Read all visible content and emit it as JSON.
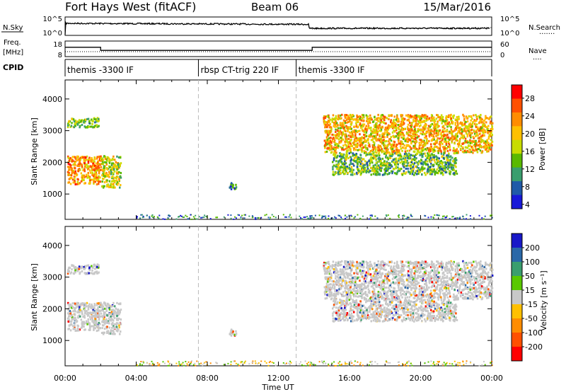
{
  "header": {
    "station": "Fort Hays West (fitACF)",
    "beam": "Beam 06",
    "date": "15/Mar/2016"
  },
  "noise_panel": {
    "left_label": "N.Sky",
    "left_ticks": [
      "10^5",
      "10^0"
    ],
    "right_ticks": [
      "10^5",
      "10^0"
    ],
    "right_label": "N.Search",
    "right_legend": "......."
  },
  "freq_panel": {
    "left_label_top": "Freq.",
    "left_label_bottom": "[MHz]",
    "left_ticks": [
      "18",
      "8"
    ],
    "right_ticks": [
      "60",
      "0"
    ],
    "right_label": "Nave",
    "right_legend": "....",
    "freq_segments": [
      {
        "from": 0,
        "to": 2,
        "mhz": 14
      },
      {
        "from": 2,
        "to": 13.9,
        "mhz": 12
      },
      {
        "from": 13.9,
        "to": 24,
        "mhz": 14
      }
    ]
  },
  "cpid": {
    "label": "CPID",
    "segments": [
      {
        "from": 0,
        "label": "themis -3300 IF"
      },
      {
        "from": 7.5,
        "label": "rbsp CT-trig 220 IF"
      },
      {
        "from": 13,
        "label": "themis -3300 IF"
      }
    ]
  },
  "x_axis": {
    "label": "Time UT",
    "ticks": [
      "00:00",
      "04:00",
      "08:00",
      "12:00",
      "16:00",
      "20:00",
      "00:00"
    ],
    "tick_hours": [
      0,
      4,
      8,
      12,
      16,
      20,
      24
    ]
  },
  "power_panel": {
    "ylabel": "Slant Range [km]",
    "yticks": [
      1000,
      2000,
      3000,
      4000
    ],
    "colorbar_label": "Power [dB]",
    "colorbar_ticks": [
      "28",
      "24",
      "20",
      "16",
      "12",
      "8",
      "4"
    ],
    "colorbar_colors": [
      "#ff0000",
      "#ff5000",
      "#ff8c00",
      "#ffc000",
      "#c8dc00",
      "#5ab900",
      "#3a9e6e",
      "#1f5aa8",
      "#1818d8"
    ]
  },
  "velocity_panel": {
    "ylabel": "Slant Range [km]",
    "yticks": [
      1000,
      2000,
      3000,
      4000
    ],
    "colorbar_label": "Velocity [m s⁻¹]",
    "colorbar_ticks": [
      "200",
      "100",
      "50",
      "15",
      "-15",
      "-50",
      "-100",
      "-200"
    ],
    "colorbar_colors": [
      "#1818c8",
      "#2a68a8",
      "#3a9e6e",
      "#5ac800",
      "#c8c8c8",
      "#ffc000",
      "#ff8c00",
      "#ff5000",
      "#ff0000"
    ]
  },
  "chart_data": {
    "type": "heatmap",
    "title": "Fort Hays West (fitACF)",
    "xlabel": "Time UT",
    "ylabel": "Slant Range [km]",
    "xlim_hours": [
      0,
      24
    ],
    "ylim_km": [
      200,
      4600
    ],
    "grid": false,
    "regions": [
      {
        "name": "early-upper",
        "t0": 0.1,
        "t1": 1.9,
        "r0": 3100,
        "r1": 3400,
        "power": 14
      },
      {
        "name": "early-lower",
        "t0": 0.1,
        "t1": 2.0,
        "r0": 1300,
        "r1": 2200,
        "power": 22
      },
      {
        "name": "early-tail",
        "t0": 2.0,
        "t1": 3.1,
        "r0": 1200,
        "r1": 2200,
        "power": 16
      },
      {
        "name": "patch-0930",
        "t0": 9.2,
        "t1": 9.7,
        "r0": 1150,
        "r1": 1350,
        "power": 8
      },
      {
        "name": "main-upper",
        "t0": 14.5,
        "t1": 24.0,
        "r0": 2300,
        "r1": 3500,
        "power": 20
      },
      {
        "name": "main-lower",
        "t0": 15.0,
        "t1": 22.0,
        "r0": 1600,
        "r1": 2300,
        "power": 12
      }
    ]
  }
}
